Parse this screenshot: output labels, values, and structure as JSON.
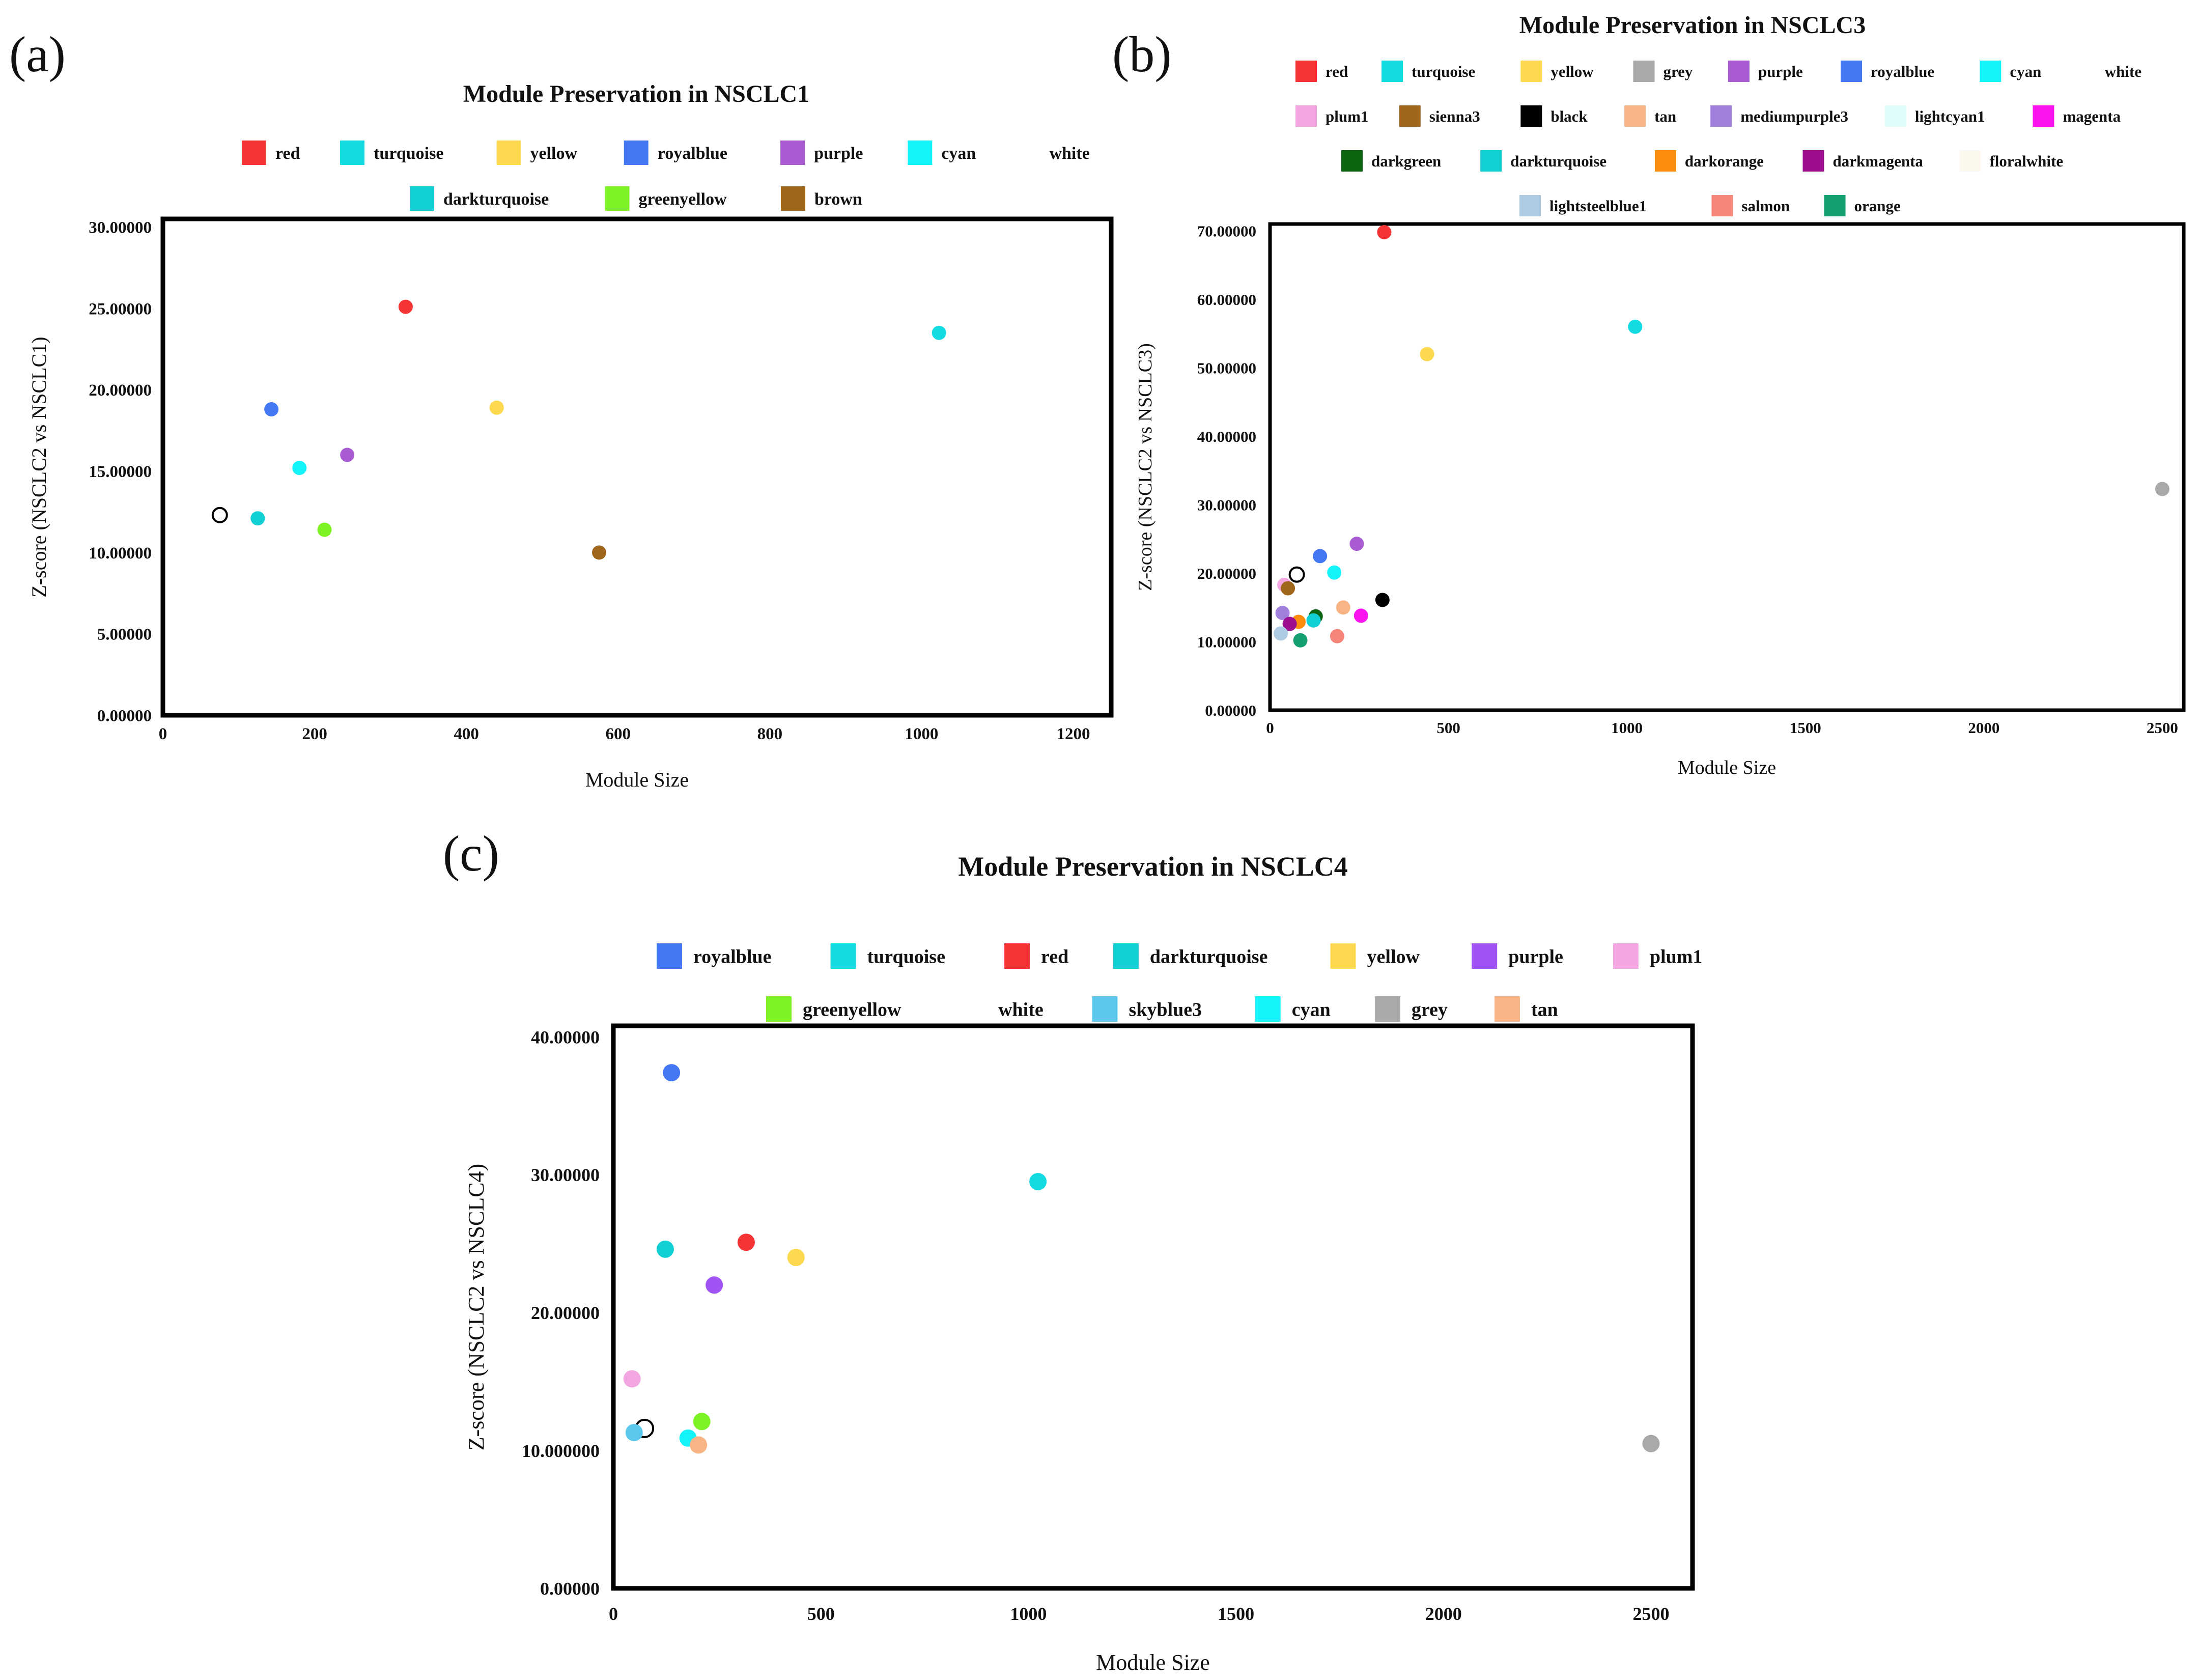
{
  "figure": {
    "panel_labels": [
      "(a)",
      "(b)",
      "(c)"
    ]
  },
  "chart_data": [
    {
      "id": "a",
      "type": "scatter",
      "title": "Module Preservation in NSCLC1",
      "xlabel": "Module Size",
      "ylabel": "Z-score (NSCLC2 vs NSCLC1)",
      "xlim": [
        0,
        1250
      ],
      "ylim": [
        0,
        30.5
      ],
      "xticks": [
        0,
        200,
        400,
        600,
        800,
        1000,
        1200
      ],
      "yticks": [
        0,
        5,
        10,
        15,
        20,
        25,
        30
      ],
      "ytick_labels": [
        "0.00000",
        "5.00000",
        "10.00000",
        "15.00000",
        "20.00000",
        "25.00000",
        "30.00000"
      ],
      "legend": [
        {
          "name": "red",
          "color": "#f53535"
        },
        {
          "name": "turquoise",
          "color": "#14dbe1"
        },
        {
          "name": "yellow",
          "color": "#fcd94f"
        },
        {
          "name": "royalblue",
          "color": "#4377f4"
        },
        {
          "name": "purple",
          "color": "#a95cd2"
        },
        {
          "name": "cyan",
          "color": "#14f3f9"
        },
        {
          "name": "white",
          "color": "#ffffff"
        },
        {
          "name": "darkturquoise",
          "color": "#11cfd2"
        },
        {
          "name": "greenyellow",
          "color": "#7df224"
        },
        {
          "name": "brown",
          "color": "#a0661b"
        }
      ],
      "points": [
        {
          "name": "red",
          "x": 320,
          "y": 25.1,
          "color": "#f53535"
        },
        {
          "name": "turquoise",
          "x": 1023,
          "y": 23.5,
          "color": "#14dbe1"
        },
        {
          "name": "royalblue",
          "x": 143,
          "y": 18.8,
          "color": "#4377f4"
        },
        {
          "name": "yellow",
          "x": 440,
          "y": 18.9,
          "color": "#fcd94f"
        },
        {
          "name": "purple",
          "x": 243,
          "y": 16.0,
          "color": "#a95cd2"
        },
        {
          "name": "cyan",
          "x": 180,
          "y": 15.2,
          "color": "#14f3f9"
        },
        {
          "name": "white",
          "x": 75,
          "y": 12.3,
          "color": "#ffffff"
        },
        {
          "name": "darkturquoise",
          "x": 125,
          "y": 12.1,
          "color": "#11cfd2"
        },
        {
          "name": "greenyellow",
          "x": 213,
          "y": 11.4,
          "color": "#7df224"
        },
        {
          "name": "brown",
          "x": 575,
          "y": 10.0,
          "color": "#a0661b"
        }
      ]
    },
    {
      "id": "b",
      "type": "scatter",
      "title": "Module Preservation in NSCLC3",
      "xlabel": "Module Size",
      "ylabel": "Z-score (NSCLC2 vs NSCLC3)",
      "xlim": [
        0,
        2560
      ],
      "ylim": [
        0,
        71
      ],
      "xticks": [
        0,
        500,
        1000,
        1500,
        2000,
        2500
      ],
      "yticks": [
        0,
        10,
        20,
        30,
        40,
        50,
        60,
        70
      ],
      "ytick_labels": [
        "0.00000",
        "10.00000",
        "20.00000",
        "30.00000",
        "40.00000",
        "50.00000",
        "60.00000",
        "70.00000"
      ],
      "legend": [
        {
          "name": "red",
          "color": "#f53535"
        },
        {
          "name": "turquoise",
          "color": "#14dbe1"
        },
        {
          "name": "yellow",
          "color": "#fcd94f"
        },
        {
          "name": "grey",
          "color": "#a9a9a9"
        },
        {
          "name": "purple",
          "color": "#a95cd2"
        },
        {
          "name": "royalblue",
          "color": "#4377f4"
        },
        {
          "name": "cyan",
          "color": "#14f3f9"
        },
        {
          "name": "white",
          "color": "#ffffff"
        },
        {
          "name": "plum1",
          "color": "#f2a7e0"
        },
        {
          "name": "sienna3",
          "color": "#a0661b"
        },
        {
          "name": "black",
          "color": "#000000"
        },
        {
          "name": "tan",
          "color": "#f8b485"
        },
        {
          "name": "mediumpurple3",
          "color": "#a07fdc"
        },
        {
          "name": "lightcyan1",
          "color": "#e0fcfc"
        },
        {
          "name": "magenta",
          "color": "#fc14f0"
        },
        {
          "name": "darkgreen",
          "color": "#0b6410"
        },
        {
          "name": "darkturquoise",
          "color": "#11cfd2"
        },
        {
          "name": "darkorange",
          "color": "#fc8c0e"
        },
        {
          "name": "darkmagenta",
          "color": "#9c0d8f"
        },
        {
          "name": "floralwhite",
          "color": "#fdf8ee"
        },
        {
          "name": "lightsteelblue1",
          "color": "#aecbe4"
        },
        {
          "name": "salmon",
          "color": "#f8857a"
        },
        {
          "name": "orange",
          "color": "#17a06f"
        }
      ],
      "points": [
        {
          "name": "red",
          "x": 320,
          "y": 69.8,
          "color": "#f53535"
        },
        {
          "name": "turquoise",
          "x": 1023,
          "y": 56.0,
          "color": "#14dbe1"
        },
        {
          "name": "yellow",
          "x": 440,
          "y": 52.0,
          "color": "#fcd94f"
        },
        {
          "name": "grey",
          "x": 2500,
          "y": 32.3,
          "color": "#a9a9a9"
        },
        {
          "name": "purple",
          "x": 243,
          "y": 24.3,
          "color": "#a95cd2"
        },
        {
          "name": "royalblue",
          "x": 140,
          "y": 22.5,
          "color": "#4377f4"
        },
        {
          "name": "cyan",
          "x": 180,
          "y": 20.1,
          "color": "#14f3f9"
        },
        {
          "name": "white",
          "x": 75,
          "y": 19.8,
          "color": "#ffffff"
        },
        {
          "name": "plum1",
          "x": 40,
          "y": 18.3,
          "color": "#f2a7e0"
        },
        {
          "name": "sienna3",
          "x": 50,
          "y": 17.8,
          "color": "#a0661b"
        },
        {
          "name": "black",
          "x": 315,
          "y": 16.1,
          "color": "#000000"
        },
        {
          "name": "tan",
          "x": 205,
          "y": 15.0,
          "color": "#f8b485"
        },
        {
          "name": "mediumpurple3",
          "x": 35,
          "y": 14.2,
          "color": "#a07fdc"
        },
        {
          "name": "magenta",
          "x": 255,
          "y": 13.8,
          "color": "#fc14f0"
        },
        {
          "name": "darkgreen",
          "x": 128,
          "y": 13.7,
          "color": "#0b6410"
        },
        {
          "name": "darkturquoise",
          "x": 122,
          "y": 13.1,
          "color": "#11cfd2"
        },
        {
          "name": "darkorange",
          "x": 80,
          "y": 12.9,
          "color": "#fc8c0e"
        },
        {
          "name": "darkmagenta",
          "x": 55,
          "y": 12.6,
          "color": "#9c0d8f"
        },
        {
          "name": "lightsteelblue1",
          "x": 30,
          "y": 11.2,
          "color": "#aecbe4"
        },
        {
          "name": "salmon",
          "x": 188,
          "y": 10.8,
          "color": "#f8857a"
        },
        {
          "name": "orange",
          "x": 85,
          "y": 10.2,
          "color": "#17a06f"
        }
      ]
    },
    {
      "id": "c",
      "type": "scatter",
      "title": "Module Preservation in NSCLC4",
      "xlabel": "Module Size",
      "ylabel": "Z-score (NSCLC2 vs NSCLC4)",
      "xlim": [
        0,
        2600
      ],
      "ylim": [
        0,
        40.8
      ],
      "xticks": [
        0,
        500,
        1000,
        1500,
        2000,
        2500
      ],
      "yticks": [
        0,
        10,
        20,
        30,
        40
      ],
      "ytick_labels": [
        "0.00000",
        "10.000000",
        "20.00000",
        "30.00000",
        "40.00000"
      ],
      "legend": [
        {
          "name": "royalblue",
          "color": "#4377f4"
        },
        {
          "name": "turquoise",
          "color": "#14dbe1"
        },
        {
          "name": "red",
          "color": "#f53535"
        },
        {
          "name": "darkturquoise",
          "color": "#11cfd2"
        },
        {
          "name": "yellow",
          "color": "#fcd94f"
        },
        {
          "name": "purple",
          "color": "#a054f4"
        },
        {
          "name": "plum1",
          "color": "#f2a7e0"
        },
        {
          "name": "greenyellow",
          "color": "#7df224"
        },
        {
          "name": "white",
          "color": "#ffffff"
        },
        {
          "name": "skyblue3",
          "color": "#5cc8ec"
        },
        {
          "name": "cyan",
          "color": "#14f3f9"
        },
        {
          "name": "grey",
          "color": "#a9a9a9"
        },
        {
          "name": "tan",
          "color": "#f8b485"
        }
      ],
      "points": [
        {
          "name": "royalblue",
          "x": 140,
          "y": 37.4,
          "color": "#4377f4"
        },
        {
          "name": "turquoise",
          "x": 1023,
          "y": 29.5,
          "color": "#14dbe1"
        },
        {
          "name": "red",
          "x": 320,
          "y": 25.1,
          "color": "#f53535"
        },
        {
          "name": "darkturquoise",
          "x": 125,
          "y": 24.6,
          "color": "#11cfd2"
        },
        {
          "name": "yellow",
          "x": 440,
          "y": 24.0,
          "color": "#fcd94f"
        },
        {
          "name": "purple",
          "x": 243,
          "y": 22.0,
          "color": "#a054f4"
        },
        {
          "name": "plum1",
          "x": 45,
          "y": 15.2,
          "color": "#f2a7e0"
        },
        {
          "name": "greenyellow",
          "x": 213,
          "y": 12.1,
          "color": "#7df224"
        },
        {
          "name": "white",
          "x": 75,
          "y": 11.6,
          "color": "#ffffff"
        },
        {
          "name": "skyblue3",
          "x": 50,
          "y": 11.3,
          "color": "#5cc8ec"
        },
        {
          "name": "cyan",
          "x": 180,
          "y": 10.9,
          "color": "#14f3f9"
        },
        {
          "name": "grey",
          "x": 2500,
          "y": 10.5,
          "color": "#a9a9a9"
        },
        {
          "name": "tan",
          "x": 205,
          "y": 10.4,
          "color": "#f8b485"
        }
      ]
    }
  ]
}
